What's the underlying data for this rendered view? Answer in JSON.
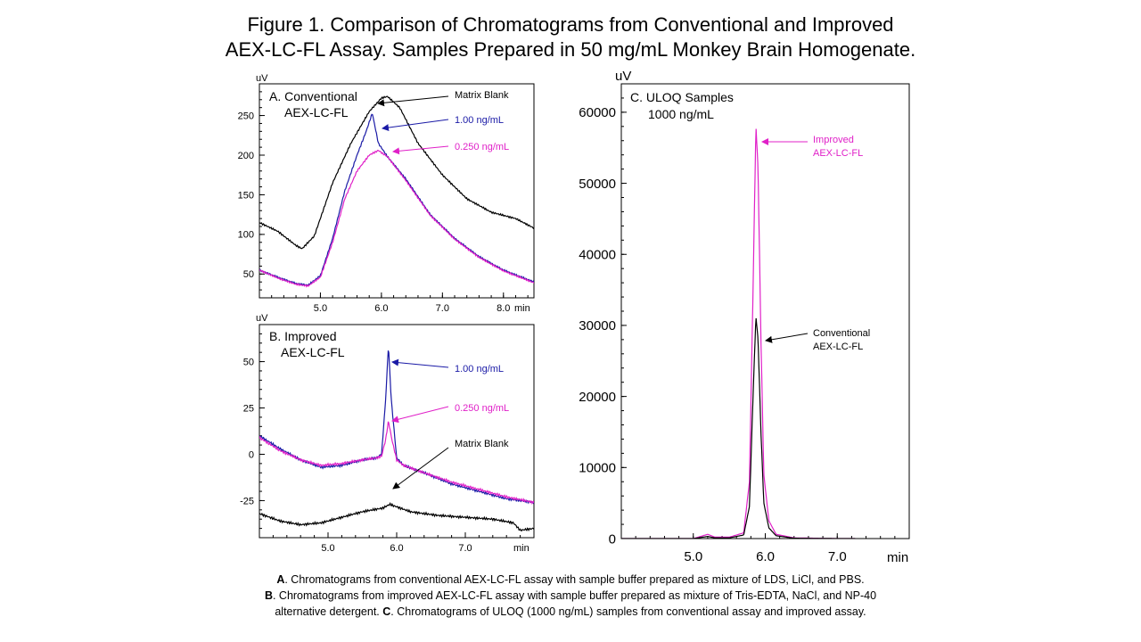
{
  "figure": {
    "title_line1": "Figure 1. Comparison of Chromatograms from Conventional and Improved",
    "title_line2": "AEX-LC-FL Assay. Samples Prepared in 50 mg/mL Monkey Brain Homogenate."
  },
  "captions": [
    {
      "letter": "A",
      "text": ".  Chromatograms from conventional AEX-LC-FL assay with sample buffer prepared as mixture of LDS, LiCl, and PBS."
    },
    {
      "letter": "B",
      "text": ".  Chromatograms from improved AEX-LC-FL assay with sample buffer prepared as mixture of Tris-EDTA, NaCl, and NP-40"
    },
    {
      "letter": "",
      "text": "alternative detergent.  "
    },
    {
      "letter": "C",
      "text": ". Chromatograms of ULOQ (1000 ng/mL) samples from conventional assay and improved assay."
    }
  ],
  "colors": {
    "black": "#000000",
    "blue": "#1a1aa6",
    "magenta": "#e020c8"
  },
  "chart_data": [
    {
      "type": "line",
      "panel_label_line1": "A. Conventional",
      "panel_label_line2": "AEX-LC-FL",
      "xlabel_unit": "min",
      "ylabel_unit": "uV",
      "xlim": [
        4.0,
        8.5
      ],
      "ylim": [
        20,
        290
      ],
      "xticks": [
        5.0,
        6.0,
        7.0,
        8.0
      ],
      "xtick_labels": [
        "5.0",
        "6.0",
        "7.0",
        "8.0"
      ],
      "yticks": [
        50,
        100,
        150,
        200,
        250
      ],
      "ytick_labels": [
        "50",
        "100",
        "150",
        "200",
        "250"
      ],
      "series": [
        {
          "name": "Matrix Blank",
          "color": "#000000",
          "x": [
            4.0,
            4.3,
            4.6,
            4.7,
            4.9,
            5.2,
            5.5,
            5.8,
            6.0,
            6.1,
            6.3,
            6.6,
            7.0,
            7.4,
            7.8,
            8.2,
            8.5
          ],
          "y": [
            115,
            104,
            86,
            82,
            98,
            165,
            215,
            255,
            272,
            274,
            260,
            215,
            175,
            145,
            128,
            120,
            108
          ]
        },
        {
          "name": "1.00 ng/mL",
          "color": "#1a1aa6",
          "x": [
            4.0,
            4.3,
            4.6,
            4.8,
            5.0,
            5.2,
            5.4,
            5.6,
            5.75,
            5.85,
            5.95,
            6.1,
            6.4,
            6.8,
            7.2,
            7.6,
            8.0,
            8.5
          ],
          "y": [
            55,
            46,
            38,
            36,
            48,
            95,
            155,
            200,
            230,
            253,
            215,
            198,
            170,
            125,
            95,
            72,
            55,
            40
          ]
        },
        {
          "name": "0.250 ng/mL",
          "color": "#e020c8",
          "x": [
            4.0,
            4.3,
            4.6,
            4.8,
            5.0,
            5.2,
            5.4,
            5.6,
            5.8,
            5.95,
            6.1,
            6.4,
            6.8,
            7.2,
            7.6,
            8.0,
            8.5
          ],
          "y": [
            55,
            45,
            37,
            35,
            46,
            90,
            145,
            180,
            200,
            206,
            198,
            168,
            124,
            94,
            71,
            54,
            39
          ]
        }
      ],
      "annotations": [
        "Matrix Blank",
        "1.00 ng/mL",
        "0.250 ng/mL"
      ]
    },
    {
      "type": "line",
      "panel_label_line1": "B. Improved",
      "panel_label_line2": "AEX-LC-FL",
      "xlabel_unit": "min",
      "ylabel_unit": "uV",
      "xlim": [
        4.0,
        8.0
      ],
      "ylim": [
        -45,
        70
      ],
      "xticks": [
        5.0,
        6.0,
        7.0
      ],
      "xtick_labels": [
        "5.0",
        "6.0",
        "7.0"
      ],
      "yticks": [
        -25,
        0,
        25,
        50
      ],
      "ytick_labels": [
        "-25",
        "0",
        "25",
        "50"
      ],
      "series": [
        {
          "name": "1.00 ng/mL",
          "color": "#1a1aa6",
          "x": [
            4.0,
            4.3,
            4.6,
            4.9,
            5.2,
            5.5,
            5.7,
            5.78,
            5.84,
            5.88,
            5.92,
            6.0,
            6.1,
            6.4,
            6.8,
            7.2,
            7.6,
            8.0
          ],
          "y": [
            10,
            3,
            -3,
            -7,
            -6,
            -3,
            -2,
            0,
            30,
            59,
            30,
            -2,
            -6,
            -10,
            -16,
            -20,
            -24,
            -26
          ]
        },
        {
          "name": "0.250 ng/mL",
          "color": "#e020c8",
          "x": [
            4.0,
            4.3,
            4.6,
            4.9,
            5.2,
            5.5,
            5.7,
            5.78,
            5.84,
            5.88,
            5.93,
            6.0,
            6.1,
            6.4,
            6.8,
            7.2,
            7.6,
            8.0
          ],
          "y": [
            9,
            2,
            -3,
            -6,
            -5,
            -3,
            -2,
            -1,
            8,
            18,
            8,
            -3,
            -6,
            -10,
            -15,
            -19,
            -23,
            -26
          ]
        },
        {
          "name": "Matrix Blank",
          "color": "#000000",
          "x": [
            4.0,
            4.3,
            4.6,
            4.9,
            5.2,
            5.5,
            5.8,
            5.9,
            6.2,
            6.6,
            7.0,
            7.4,
            7.7,
            7.8,
            8.0
          ],
          "y": [
            -32,
            -36,
            -38,
            -37,
            -34,
            -31,
            -29,
            -27,
            -31,
            -33,
            -34,
            -35,
            -37,
            -41,
            -40
          ]
        }
      ],
      "annotations": [
        "1.00 ng/mL",
        "0.250 ng/mL",
        "Matrix Blank"
      ]
    },
    {
      "type": "line",
      "panel_label_line1": "C.  ULOQ Samples",
      "panel_label_line2": "1000 ng/mL",
      "xlabel_unit": "min",
      "ylabel_unit": "uV",
      "xlim": [
        4.0,
        8.0
      ],
      "ylim": [
        0,
        64000
      ],
      "xticks": [
        5.0,
        6.0,
        7.0
      ],
      "xtick_labels": [
        "5.0",
        "6.0",
        "7.0"
      ],
      "yticks": [
        0,
        10000,
        20000,
        30000,
        40000,
        50000,
        60000
      ],
      "ytick_labels": [
        "0",
        "10000",
        "20000",
        "30000",
        "40000",
        "50000",
        "60000"
      ],
      "series": [
        {
          "name": "Improved AEX-LC-FL",
          "color": "#e020c8",
          "x": [
            4.0,
            5.0,
            5.2,
            5.3,
            5.5,
            5.7,
            5.78,
            5.83,
            5.87,
            5.9,
            5.94,
            5.98,
            6.05,
            6.15,
            6.4,
            7.0,
            7.25
          ],
          "y": [
            0,
            0,
            600,
            200,
            200,
            800,
            8000,
            35000,
            58200,
            52000,
            28000,
            9000,
            2500,
            600,
            100,
            0,
            0
          ]
        },
        {
          "name": "Conventional AEX-LC-FL",
          "color": "#000000",
          "x": [
            4.0,
            5.0,
            5.2,
            5.3,
            5.5,
            5.7,
            5.78,
            5.83,
            5.87,
            5.9,
            5.94,
            5.98,
            6.05,
            6.15,
            6.4,
            7.0,
            7.25
          ],
          "y": [
            0,
            0,
            300,
            100,
            100,
            500,
            4500,
            20000,
            31300,
            28000,
            15000,
            5000,
            1500,
            400,
            50,
            0,
            0
          ]
        }
      ],
      "annotations": [
        "Improved",
        "AEX-LC-FL",
        "Conventional",
        "AEX-LC-FL"
      ]
    }
  ]
}
